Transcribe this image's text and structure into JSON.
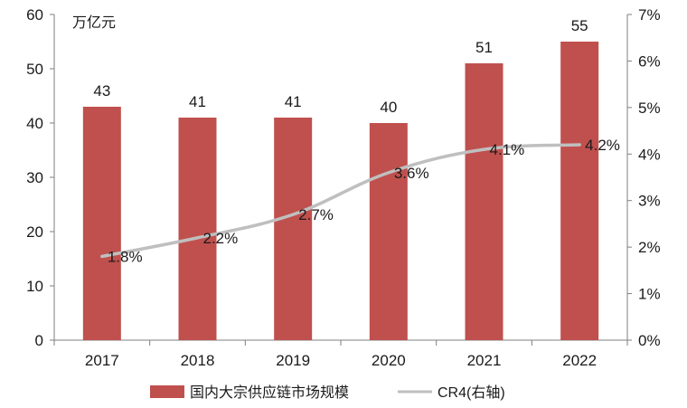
{
  "chart_data": {
    "type": "bar",
    "categories": [
      "2017",
      "2018",
      "2019",
      "2020",
      "2021",
      "2022"
    ],
    "series": [
      {
        "name": "国内大宗供应链市场规模",
        "type": "bar",
        "axis": "left",
        "values": [
          43,
          41,
          41,
          40,
          51,
          55
        ],
        "labels": [
          "43",
          "41",
          "41",
          "40",
          "51",
          "55"
        ]
      },
      {
        "name": "CR4(右轴)",
        "type": "line",
        "axis": "right",
        "values": [
          1.8,
          2.2,
          2.7,
          3.6,
          4.1,
          4.2
        ],
        "labels": [
          "1.8%",
          "2.2%",
          "2.7%",
          "3.6%",
          "4.1%",
          "4.2%"
        ]
      }
    ],
    "y_left": {
      "unit_label": "万亿元",
      "ylim": [
        0,
        60
      ],
      "ticks": [
        "0",
        "10",
        "20",
        "30",
        "40",
        "50",
        "60"
      ],
      "tick_values": [
        0,
        10,
        20,
        30,
        40,
        50,
        60
      ]
    },
    "y_right": {
      "ylim": [
        0,
        7
      ],
      "ticks": [
        "0%",
        "1%",
        "2%",
        "3%",
        "4%",
        "5%",
        "6%",
        "7%"
      ],
      "tick_values": [
        0,
        1,
        2,
        3,
        4,
        5,
        6,
        7
      ]
    },
    "grid": false,
    "legend_position": "bottom",
    "colors": {
      "bar": "#C0504D",
      "line": "#BFBFBF",
      "axis": "#7F7F7F"
    }
  }
}
